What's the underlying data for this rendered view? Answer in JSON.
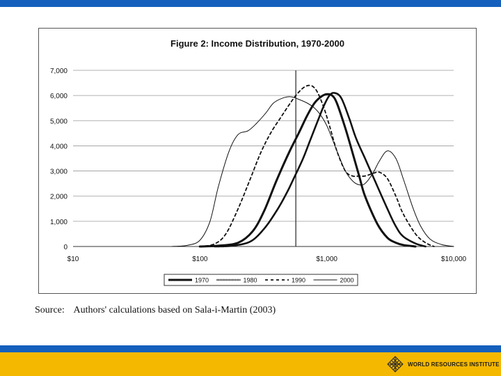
{
  "source": {
    "label": "Source:",
    "text": "Authors' calculations based on Sala-i-Martin (2003)"
  },
  "logo": {
    "name": "WORLD RESOURCES INSTITUTE",
    "icon": "globe-grid-icon"
  },
  "colors": {
    "top_bar": "#1560bd",
    "bottom_bar_blue": "#1560bd",
    "bottom_bar_yellow": "#f5b800"
  },
  "chart_data": {
    "type": "line",
    "title": "Figure 2: Income Distribution, 1970-2000",
    "xlabel": "",
    "ylabel": "",
    "x_scale": "log",
    "xlim": [
      10,
      10000
    ],
    "ylim": [
      0,
      7000
    ],
    "x_ticks": [
      10,
      100,
      1000,
      10000
    ],
    "x_tick_labels": [
      "$10",
      "$100",
      "$1,000",
      "$10,000"
    ],
    "y_ticks": [
      0,
      1000,
      2000,
      3000,
      4000,
      5000,
      6000,
      7000
    ],
    "y_tick_labels": [
      "0",
      "1,000",
      "2,000",
      "3,000",
      "4,000",
      "5,000",
      "6,000",
      "7,000"
    ],
    "grid": true,
    "legend_position": "bottom",
    "reference_line_x": 570,
    "series": [
      {
        "name": "1970",
        "style": "thick",
        "x": [
          100,
          140,
          200,
          260,
          320,
          400,
          500,
          600,
          700,
          800,
          900,
          1000,
          1100,
          1200,
          1400,
          1600,
          1800,
          2000,
          2500,
          3000,
          3500,
          4000,
          5000
        ],
        "y": [
          0,
          30,
          150,
          600,
          1400,
          2600,
          3700,
          4500,
          5200,
          5700,
          5950,
          6050,
          6000,
          5700,
          4700,
          3700,
          2800,
          2000,
          900,
          350,
          150,
          60,
          0
        ]
      },
      {
        "name": "1980",
        "style": "thick-dotted",
        "x": [
          130,
          180,
          250,
          320,
          400,
          480,
          560,
          650,
          750,
          850,
          950,
          1050,
          1150,
          1300,
          1500,
          1700,
          2000,
          2400,
          3000,
          3500,
          4000,
          5000,
          6000
        ],
        "y": [
          0,
          30,
          200,
          700,
          1400,
          2100,
          2800,
          3500,
          4300,
          5000,
          5600,
          6000,
          6100,
          5900,
          5100,
          4300,
          3500,
          2600,
          1500,
          800,
          400,
          120,
          0
        ]
      },
      {
        "name": "1990",
        "style": "dashed",
        "x": [
          100,
          130,
          160,
          200,
          250,
          300,
          360,
          430,
          500,
          570,
          650,
          720,
          780,
          850,
          950,
          1050,
          1200,
          1400,
          1600,
          1800,
          2000,
          2300,
          2600,
          3000,
          3500,
          4000,
          5000,
          6000,
          7000
        ],
        "y": [
          0,
          100,
          500,
          1500,
          2700,
          3700,
          4500,
          5100,
          5600,
          6000,
          6300,
          6400,
          6350,
          6100,
          5500,
          4800,
          3800,
          3000,
          2800,
          2800,
          2800,
          2900,
          2950,
          2700,
          2000,
          1300,
          500,
          150,
          0
        ]
      },
      {
        "name": "2000",
        "style": "thin",
        "x": [
          60,
          80,
          100,
          120,
          140,
          170,
          200,
          240,
          280,
          330,
          380,
          450,
          520,
          600,
          700,
          800,
          900,
          1000,
          1100,
          1200,
          1400,
          1600,
          1800,
          2000,
          2300,
          2600,
          3000,
          3500,
          4000,
          4800,
          5500,
          6500,
          8000,
          10000
        ],
        "y": [
          0,
          50,
          250,
          1000,
          2400,
          3800,
          4450,
          4600,
          4900,
          5300,
          5700,
          5900,
          5950,
          5850,
          5700,
          5500,
          5200,
          4800,
          4300,
          3800,
          3000,
          2600,
          2450,
          2500,
          2900,
          3400,
          3800,
          3500,
          2700,
          1500,
          800,
          300,
          80,
          0
        ]
      }
    ]
  }
}
